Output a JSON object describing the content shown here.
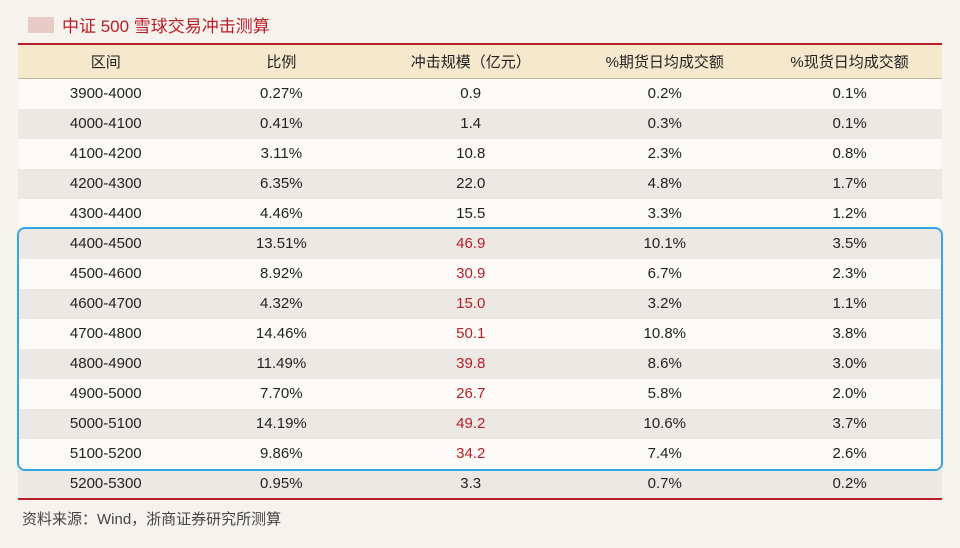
{
  "title": "中证 500 雪球交易冲击测算",
  "source": "资料来源：Wind，浙商证券研究所测算",
  "columns": [
    "区间",
    "比例",
    "冲击规模（亿元）",
    "%期货日均成交额",
    "%现货日均成交额"
  ],
  "highlight_color": "#35a7e0",
  "red_color": "#b91e28",
  "header_bg": "#f5e8cd",
  "rows": [
    {
      "range": "3900-4000",
      "pct": "0.27%",
      "impact": "0.9",
      "fut": "0.2%",
      "spot": "0.1%",
      "hot": false
    },
    {
      "range": "4000-4100",
      "pct": "0.41%",
      "impact": "1.4",
      "fut": "0.3%",
      "spot": "0.1%",
      "hot": false
    },
    {
      "range": "4100-4200",
      "pct": "3.11%",
      "impact": "10.8",
      "fut": "2.3%",
      "spot": "0.8%",
      "hot": false
    },
    {
      "range": "4200-4300",
      "pct": "6.35%",
      "impact": "22.0",
      "fut": "4.8%",
      "spot": "1.7%",
      "hot": false
    },
    {
      "range": "4300-4400",
      "pct": "4.46%",
      "impact": "15.5",
      "fut": "3.3%",
      "spot": "1.2%",
      "hot": false
    },
    {
      "range": "4400-4500",
      "pct": "13.51%",
      "impact": "46.9",
      "fut": "10.1%",
      "spot": "3.5%",
      "hot": true
    },
    {
      "range": "4500-4600",
      "pct": "8.92%",
      "impact": "30.9",
      "fut": "6.7%",
      "spot": "2.3%",
      "hot": true
    },
    {
      "range": "4600-4700",
      "pct": "4.32%",
      "impact": "15.0",
      "fut": "3.2%",
      "spot": "1.1%",
      "hot": true
    },
    {
      "range": "4700-4800",
      "pct": "14.46%",
      "impact": "50.1",
      "fut": "10.8%",
      "spot": "3.8%",
      "hot": true
    },
    {
      "range": "4800-4900",
      "pct": "11.49%",
      "impact": "39.8",
      "fut": "8.6%",
      "spot": "3.0%",
      "hot": true
    },
    {
      "range": "4900-5000",
      "pct": "7.70%",
      "impact": "26.7",
      "fut": "5.8%",
      "spot": "2.0%",
      "hot": true
    },
    {
      "range": "5000-5100",
      "pct": "14.19%",
      "impact": "49.2",
      "fut": "10.6%",
      "spot": "3.7%",
      "hot": true
    },
    {
      "range": "5100-5200",
      "pct": "9.86%",
      "impact": "34.2",
      "fut": "7.4%",
      "spot": "2.6%",
      "hot": true
    },
    {
      "range": "5200-5300",
      "pct": "0.95%",
      "impact": "3.3",
      "fut": "0.7%",
      "spot": "0.2%",
      "hot": false
    }
  ],
  "highlight_row_start": 5,
  "highlight_row_end": 12
}
